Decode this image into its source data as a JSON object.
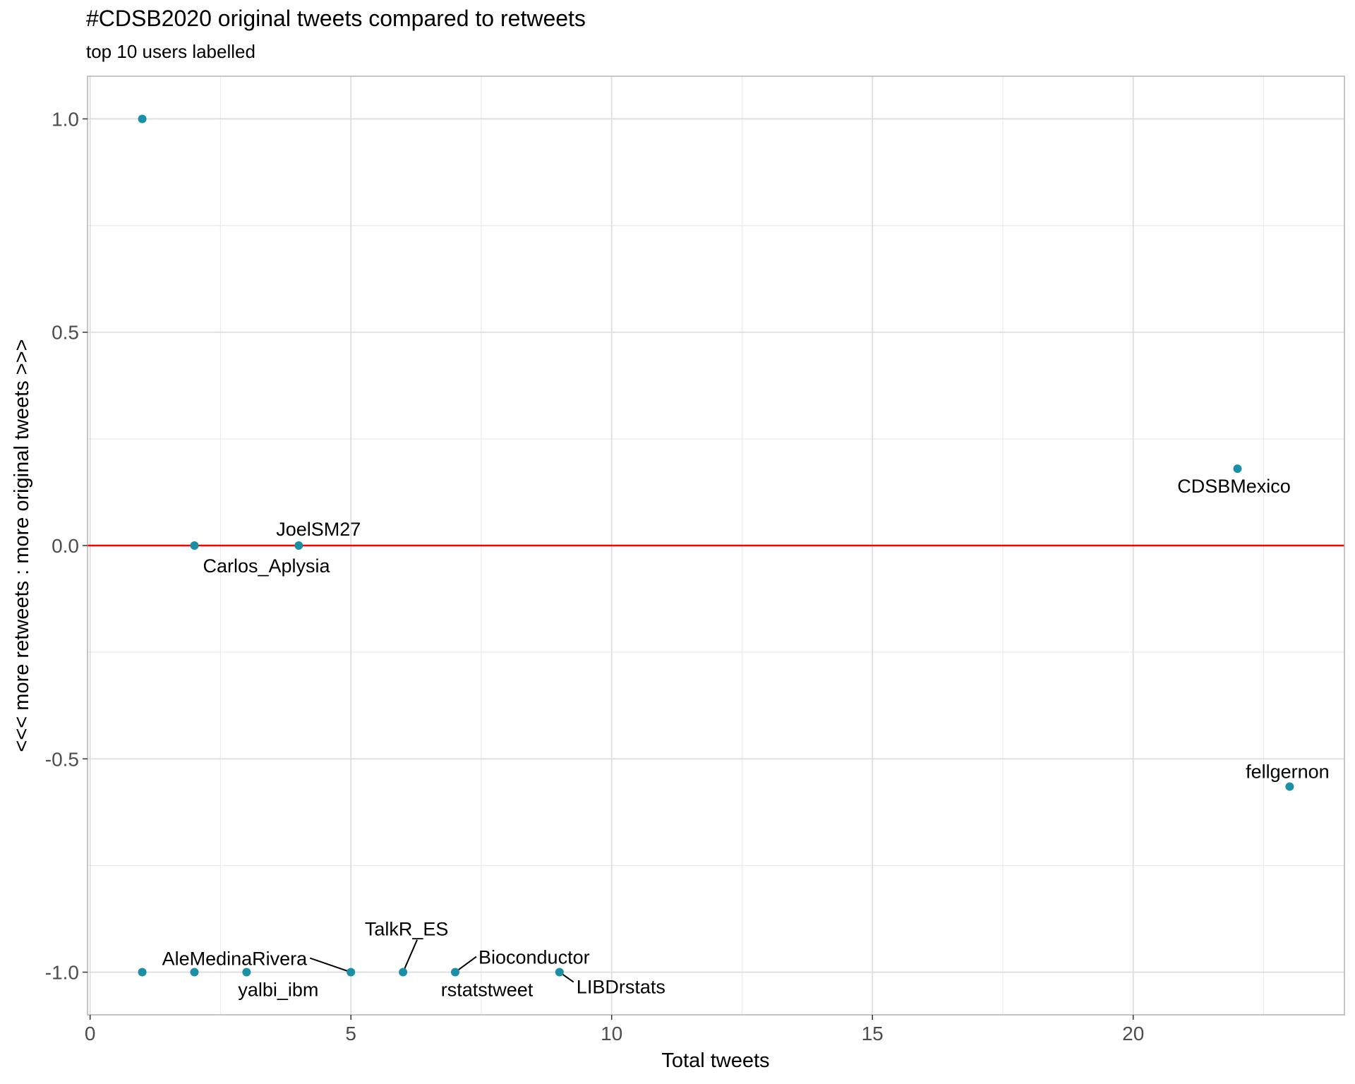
{
  "chart_data": {
    "type": "scatter",
    "title": "#CDSB2020 original tweets compared to retweets",
    "subtitle": "top 10 users labelled",
    "xlabel": "Total tweets",
    "ylabel": "<<< more retweets : more original tweets >>>",
    "xlim": [
      -0.05,
      24.05
    ],
    "ylim": [
      -1.1,
      1.1
    ],
    "x_ticks": [
      0,
      5,
      10,
      15,
      20
    ],
    "x_tick_labels": [
      "0",
      "5",
      "10",
      "15",
      "20"
    ],
    "y_ticks": [
      1.0,
      0.5,
      0.0,
      -0.5,
      -1.0
    ],
    "y_tick_labels": [
      "1.0",
      "0.5",
      "0.0",
      "-0.5",
      "-1.0"
    ],
    "grid": true,
    "point_color": "#1a8fa6",
    "reference_line": {
      "y": 0,
      "color": "#ff0000"
    },
    "points": [
      {
        "x": 1,
        "y": 1.0
      },
      {
        "x": 1,
        "y": -1.0
      },
      {
        "x": 2,
        "y": -1.0
      },
      {
        "x": 2,
        "y": 0.0,
        "label": "Carlos_Aplysia"
      },
      {
        "x": 4,
        "y": 0.0,
        "label": "JoelSM27"
      },
      {
        "x": 3,
        "y": -1.0,
        "label": "yalbi_ibm"
      },
      {
        "x": 5,
        "y": -1.0,
        "label": "AleMedinaRivera"
      },
      {
        "x": 6,
        "y": -1.0,
        "label": "TalkR_ES"
      },
      {
        "x": 7,
        "y": -1.0,
        "label": "rstatstweet"
      },
      {
        "x": 9,
        "y": -1.0,
        "label": "LIBDrstats"
      },
      {
        "x": 22,
        "y": 0.18,
        "label": "CDSBMexico"
      },
      {
        "x": 23,
        "y": -0.565,
        "label": "fellgernon"
      }
    ],
    "extra_labels": [
      {
        "x": 7,
        "y": -1.0,
        "label": "Bioconductor"
      }
    ]
  }
}
